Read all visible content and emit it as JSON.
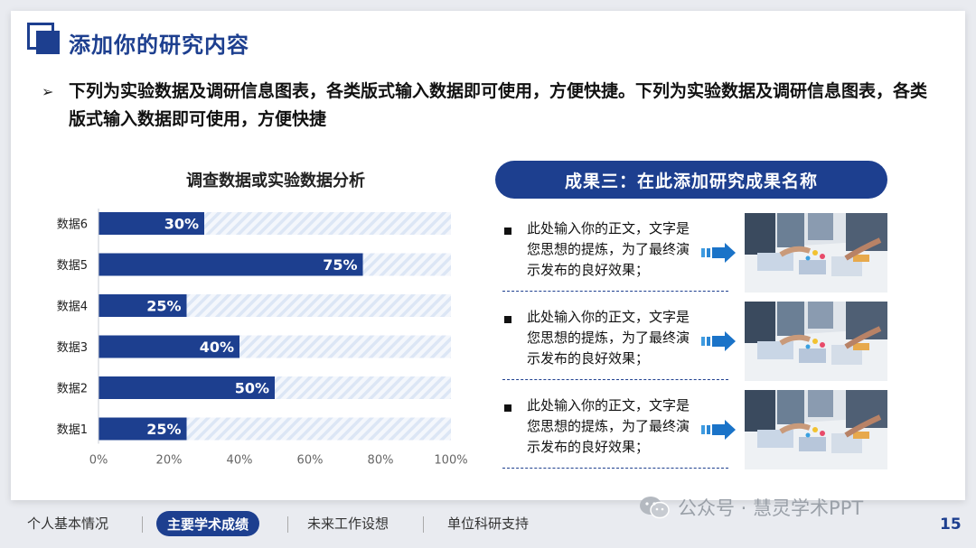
{
  "slide": {
    "title": "添加你的研究内容",
    "intro": "下列为实验数据及调研信息图表，各类版式输入数据即可使用，方便快捷。下列为实验数据及调研信息图表，各类版式输入数据即可使用，方便快捷",
    "page_number": "15"
  },
  "colors": {
    "accent": "#1d3f8f",
    "bar_bg_stripe": "#dce6f5"
  },
  "chart_data": {
    "type": "bar",
    "orientation": "horizontal",
    "title": "调查数据或实验数据分析",
    "categories": [
      "数据6",
      "数据5",
      "数据4",
      "数据3",
      "数据2",
      "数据1"
    ],
    "values": [
      30,
      75,
      25,
      40,
      50,
      25
    ],
    "value_labels": [
      "30%",
      "75%",
      "25%",
      "40%",
      "50%",
      "25%"
    ],
    "xlim": [
      0,
      100
    ],
    "xticks": [
      0,
      20,
      40,
      60,
      80,
      100
    ],
    "xtick_labels": [
      "0%",
      "20%",
      "40%",
      "60%",
      "80%",
      "100%"
    ],
    "grid": false,
    "bar_color": "#1d3f8f"
  },
  "results": {
    "title": "成果三：在此添加研究成果名称",
    "items": [
      {
        "text": "此处输入你的正文，文字是您思想的提炼，为了最终演示发布的良好效果；",
        "icon": "arrow-right-icon"
      },
      {
        "text": "此处输入你的正文，文字是您思想的提炼，为了最终演示发布的良好效果；",
        "icon": "arrow-right-icon"
      },
      {
        "text": "此处输入你的正文，文字是您思想的提炼，为了最终演示发布的良好效果；",
        "icon": "arrow-right-icon"
      }
    ]
  },
  "footer": {
    "nav": [
      "个人基本情况",
      "主要学术成绩",
      "未来工作设想",
      "单位科研支持"
    ],
    "active": "主要学术成绩",
    "watermark": "公众号 · 慧灵学术PPT"
  }
}
